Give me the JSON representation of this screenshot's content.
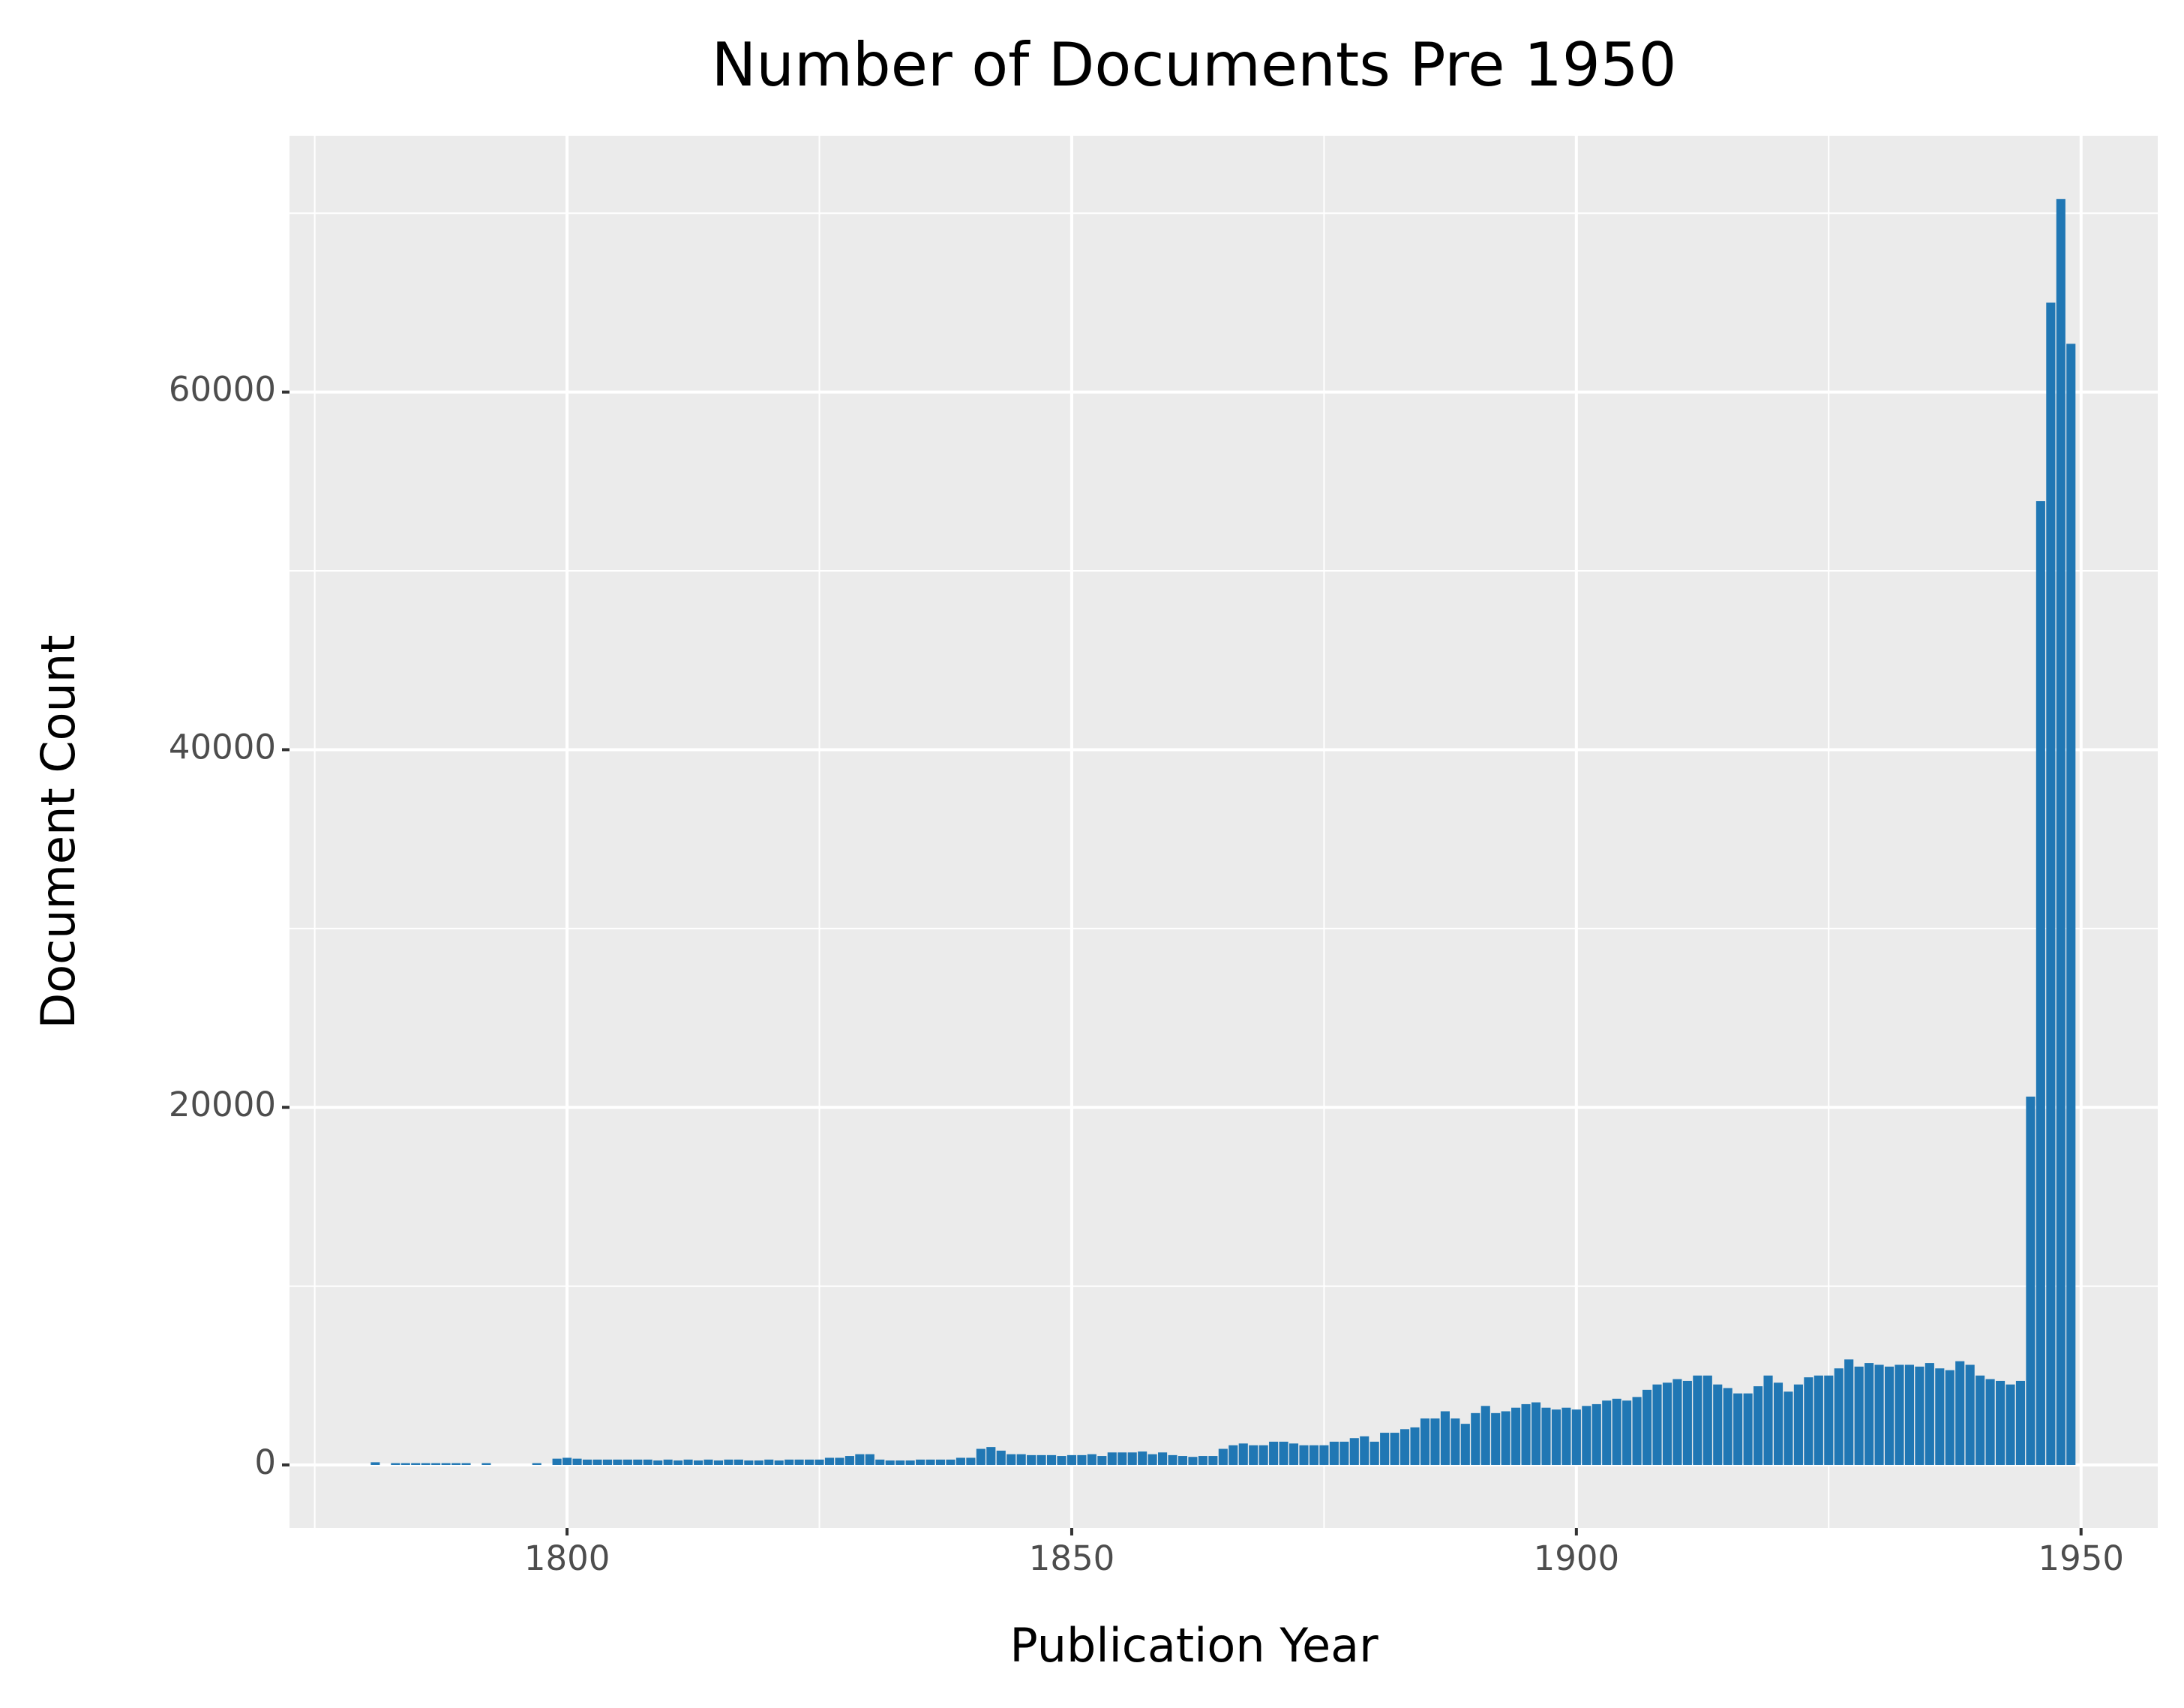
{
  "chart_data": {
    "type": "bar",
    "title": "Number of Documents Pre 1950",
    "xlabel": "Publication Year",
    "ylabel": "Document Count",
    "color": "#2077b4",
    "x": [
      1781,
      1782,
      1783,
      1784,
      1785,
      1786,
      1787,
      1788,
      1789,
      1790,
      1791,
      1792,
      1793,
      1794,
      1795,
      1796,
      1797,
      1798,
      1799,
      1800,
      1801,
      1802,
      1803,
      1804,
      1805,
      1806,
      1807,
      1808,
      1809,
      1810,
      1811,
      1812,
      1813,
      1814,
      1815,
      1816,
      1817,
      1818,
      1819,
      1820,
      1821,
      1822,
      1823,
      1824,
      1825,
      1826,
      1827,
      1828,
      1829,
      1830,
      1831,
      1832,
      1833,
      1834,
      1835,
      1836,
      1837,
      1838,
      1839,
      1840,
      1841,
      1842,
      1843,
      1844,
      1845,
      1846,
      1847,
      1848,
      1849,
      1850,
      1851,
      1852,
      1853,
      1854,
      1855,
      1856,
      1857,
      1858,
      1859,
      1860,
      1861,
      1862,
      1863,
      1864,
      1865,
      1866,
      1867,
      1868,
      1869,
      1870,
      1871,
      1872,
      1873,
      1874,
      1875,
      1876,
      1877,
      1878,
      1879,
      1880,
      1881,
      1882,
      1883,
      1884,
      1885,
      1886,
      1887,
      1888,
      1889,
      1890,
      1891,
      1892,
      1893,
      1894,
      1895,
      1896,
      1897,
      1898,
      1899,
      1900,
      1901,
      1902,
      1903,
      1904,
      1905,
      1906,
      1907,
      1908,
      1909,
      1910,
      1911,
      1912,
      1913,
      1914,
      1915,
      1916,
      1917,
      1918,
      1919,
      1920,
      1921,
      1922,
      1923,
      1924,
      1925,
      1926,
      1927,
      1928,
      1929,
      1930,
      1931,
      1932,
      1933,
      1934,
      1935,
      1936,
      1937,
      1938,
      1939,
      1940,
      1941,
      1942,
      1943,
      1944,
      1945,
      1946,
      1947,
      1948,
      1949
    ],
    "values": [
      150,
      0,
      100,
      100,
      100,
      100,
      100,
      100,
      100,
      100,
      0,
      100,
      0,
      0,
      0,
      0,
      100,
      0,
      350,
      400,
      350,
      300,
      300,
      300,
      300,
      300,
      300,
      300,
      250,
      300,
      250,
      300,
      250,
      300,
      250,
      300,
      300,
      250,
      250,
      300,
      250,
      300,
      300,
      300,
      300,
      400,
      400,
      500,
      600,
      600,
      300,
      250,
      250,
      250,
      300,
      300,
      300,
      300,
      400,
      400,
      900,
      1000,
      800,
      600,
      600,
      550,
      550,
      550,
      500,
      550,
      550,
      600,
      500,
      700,
      700,
      700,
      750,
      600,
      700,
      550,
      500,
      450,
      500,
      500,
      900,
      1100,
      1200,
      1100,
      1100,
      1300,
      1300,
      1200,
      1100,
      1100,
      1100,
      1300,
      1300,
      1500,
      1600,
      1300,
      1800,
      1800,
      2000,
      2100,
      2600,
      2600,
      3000,
      2600,
      2300,
      2900,
      3300,
      2900,
      3000,
      3200,
      3400,
      3500,
      3200,
      3100,
      3200,
      3100,
      3300,
      3400,
      3600,
      3700,
      3600,
      3800,
      4200,
      4500,
      4600,
      4800,
      4700,
      5000,
      5000,
      4500,
      4300,
      4000,
      4000,
      4400,
      5000,
      4600,
      4100,
      4500,
      4900,
      5000,
      5000,
      5400,
      5900,
      5500,
      5700,
      5600,
      5500,
      5600,
      5600,
      5500,
      5700,
      5400,
      5300,
      5800,
      5600,
      5000,
      4800,
      4700,
      4500,
      4700,
      20600,
      53900,
      65000,
      70800,
      62700
    ],
    "xlim": [
      1772.5,
      1957.6
    ],
    "ylim": [
      -3525,
      74333
    ],
    "xticks": [
      1800,
      1850,
      1900,
      1950
    ],
    "yticks": [
      0,
      20000,
      40000,
      60000
    ],
    "xminor": [
      1775,
      1825,
      1875,
      1925
    ],
    "yminor": [
      10000,
      30000,
      50000,
      70000
    ],
    "grid": true
  }
}
